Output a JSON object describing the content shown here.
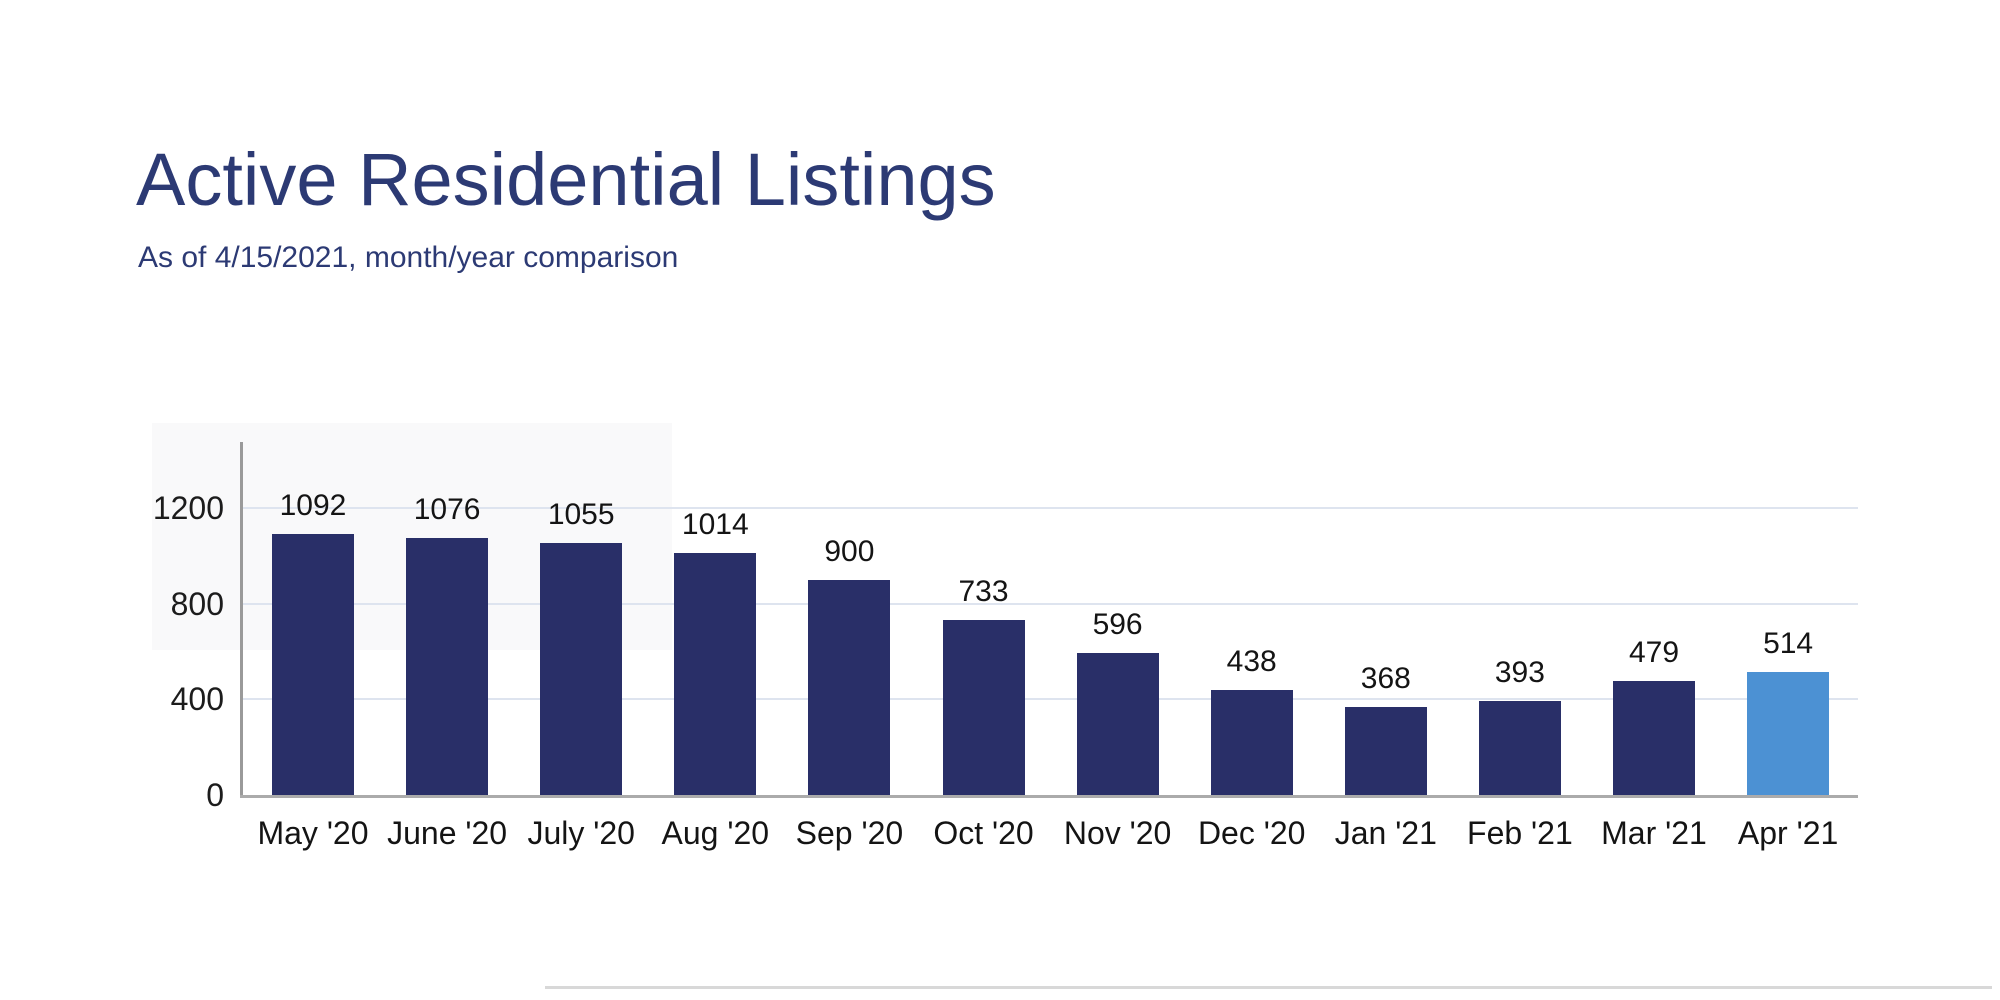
{
  "header": {
    "title": "Active Residential Listings",
    "subtitle": "As of 4/15/2021, month/year comparison"
  },
  "chart_data": {
    "type": "bar",
    "title": "Active Residential Listings",
    "subtitle": "As of 4/15/2021, month/year comparison",
    "categories": [
      "May '20",
      "June '20",
      "July '20",
      "Aug '20",
      "Sep '20",
      "Oct '20",
      "Nov '20",
      "Dec '20",
      "Jan '21",
      "Feb '21",
      "Mar '21",
      "Apr '21"
    ],
    "values": [
      1092,
      1076,
      1055,
      1014,
      900,
      733,
      596,
      438,
      368,
      393,
      479,
      514
    ],
    "value_labels": true,
    "yticks": [
      0,
      400,
      800,
      1200
    ],
    "ylim": [
      0,
      1300
    ],
    "grid": true,
    "legend": "none",
    "colors": {
      "bar_default": "#292f68",
      "bar_highlight": "#4c91d3",
      "title_text": "#2c3a74",
      "axis_text": "#1c1c1c",
      "gridline": "#dee4ef",
      "axis_line": "#9a9a9a"
    },
    "highlight_index": 11
  }
}
